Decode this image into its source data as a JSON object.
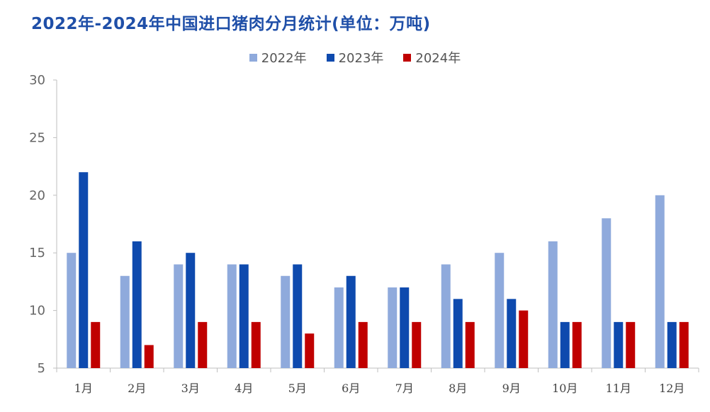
{
  "title": "2022年-2024年中国进口猪肉分月统计(单位：万吨)",
  "colors": {
    "axis": "#bfbfbf",
    "text": "#666666"
  },
  "chart_data": {
    "type": "bar",
    "title": "2022年-2024年中国进口猪肉分月统计(单位：万吨)",
    "xlabel": "",
    "ylabel": "",
    "ylim": [
      5,
      30
    ],
    "yticks": [
      5,
      10,
      15,
      20,
      25,
      30
    ],
    "grid": false,
    "legend_position": "top",
    "categories": [
      "1月",
      "2月",
      "3月",
      "4月",
      "5月",
      "6月",
      "7月",
      "8月",
      "9月",
      "10月",
      "11月",
      "12月"
    ],
    "series": [
      {
        "name": "2022年",
        "color": "#8faadc",
        "values": [
          15,
          13,
          14,
          14,
          13,
          12,
          12,
          14,
          15,
          16,
          18,
          20
        ]
      },
      {
        "name": "2023年",
        "color": "#0e4aae",
        "values": [
          22,
          16,
          15,
          14,
          14,
          13,
          12,
          11,
          11,
          9,
          9,
          9
        ]
      },
      {
        "name": "2024年",
        "color": "#c00000",
        "values": [
          9,
          7,
          9,
          9,
          8,
          9,
          9,
          9,
          10,
          9,
          9,
          9
        ]
      }
    ]
  }
}
